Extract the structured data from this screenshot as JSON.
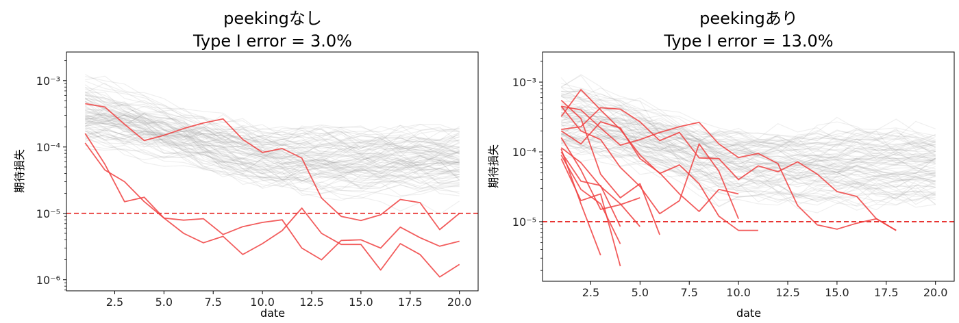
{
  "chart_data": [
    {
      "type": "line",
      "title": "peekingなし",
      "subtitle": "Type I error = 3.0%",
      "xlabel": "date",
      "ylabel": "期待損失",
      "xlim": [
        0.05,
        20.95
      ],
      "ylim": [
        6.8e-07,
        0.0027
      ],
      "log_y": true,
      "x_ticks": [
        "2.5",
        "5.0",
        "7.5",
        "10.0",
        "12.5",
        "15.0",
        "17.5",
        "20.0"
      ],
      "y_ticks": [
        "10⁻⁶",
        "10⁻⁵",
        "10⁻⁴",
        "10⁻³"
      ],
      "threshold": 1e-05,
      "threshold_color": "#e8302e",
      "background_series_color": "#9a9a9a",
      "highlight_color": "#f04040",
      "highlighted_series": [
        {
          "x": [
            1,
            2,
            3,
            4,
            5,
            6,
            7,
            8,
            9,
            10,
            11,
            12,
            13,
            14,
            15,
            16,
            17,
            18,
            19,
            20
          ],
          "y": [
            0.00045,
            0.0004,
            0.00022,
            0.000125,
            0.00015,
            0.00019,
            0.00023,
            0.000265,
            0.00013,
            8.3e-05,
            9.5e-05,
            6.8e-05,
            1.7e-05,
            9e-06,
            7.8e-06,
            9.5e-06,
            1.62e-05,
            1.45e-05,
            5.7e-06,
            1e-05
          ]
        },
        {
          "x": [
            1,
            2,
            3,
            4,
            5,
            6,
            7,
            8,
            9,
            10,
            11,
            12,
            13,
            14,
            15,
            16,
            17,
            18,
            19,
            20
          ],
          "y": [
            0.00016,
            5.5e-05,
            1.5e-05,
            1.75e-05,
            8.5e-06,
            7.9e-06,
            8.3e-06,
            4.8e-06,
            6.3e-06,
            7.3e-06,
            8e-06,
            3e-06,
            2e-06,
            3.9e-06,
            4e-06,
            3e-06,
            6.2e-06,
            4.3e-06,
            3.2e-06,
            3.8e-06
          ]
        },
        {
          "x": [
            1,
            2,
            3,
            4,
            5,
            6,
            7,
            8,
            9,
            10,
            11,
            12,
            13,
            14,
            15,
            16,
            17,
            18,
            19,
            20
          ],
          "y": [
            0.000115,
            4.5e-05,
            3e-05,
            1.5e-05,
            8.5e-06,
            5e-06,
            3.6e-06,
            4.5e-06,
            2.4e-06,
            3.5e-06,
            5.5e-06,
            1.2e-05,
            5e-06,
            3.4e-06,
            3.4e-06,
            1.4e-06,
            3.5e-06,
            2.4e-06,
            1.1e-06,
            1.7e-06
          ]
        }
      ]
    },
    {
      "type": "line",
      "title": "peekingあり",
      "subtitle": "Type I error = 13.0%",
      "xlabel": "date",
      "ylabel": "期待損失",
      "xlim": [
        0.05,
        20.95
      ],
      "ylim": [
        1.4e-06,
        0.0027
      ],
      "log_y": true,
      "x_ticks": [
        "2.5",
        "5.0",
        "7.5",
        "10.0",
        "12.5",
        "15.0",
        "17.5",
        "20.0"
      ],
      "y_ticks": [
        "10⁻⁵",
        "10⁻⁴",
        "10⁻³"
      ],
      "threshold": 1e-05,
      "threshold_color": "#e8302e",
      "background_series_color": "#9a9a9a",
      "highlight_color": "#f04040",
      "highlighted_series": [
        {
          "x": [
            1,
            2,
            3,
            4,
            5,
            6,
            7,
            8,
            9,
            10,
            11,
            12,
            13,
            14,
            15,
            16,
            17,
            18
          ],
          "y": [
            0.00045,
            0.0004,
            0.00022,
            0.000125,
            0.00015,
            0.00019,
            0.00023,
            0.000265,
            0.00013,
            8.3e-05,
            9.5e-05,
            6.8e-05,
            1.7e-05,
            9e-06,
            7.8e-06,
            9.5e-06,
            1.1e-05,
            7.5e-06
          ]
        },
        {
          "x": [
            1,
            2,
            3,
            4,
            5,
            6,
            7,
            8,
            9,
            10,
            11,
            12,
            13,
            14,
            15,
            16,
            17,
            18
          ],
          "y": [
            0.00021,
            0.00023,
            0.00043,
            0.00041,
            0.00027,
            0.000145,
            0.00019,
            8.2e-05,
            8e-05,
            4e-05,
            6.3e-05,
            5.2e-05,
            7.2e-05,
            4.8e-05,
            2.7e-05,
            2.3e-05,
            1.1e-05,
            7.5e-06
          ]
        },
        {
          "x": [
            1,
            2,
            3,
            4,
            5,
            6,
            7,
            8,
            9,
            10,
            11
          ],
          "y": [
            0.00032,
            0.00078,
            0.0004,
            0.00021,
            9e-05,
            4.9e-05,
            6.5e-05,
            3.5e-05,
            1.2e-05,
            7.5e-06,
            7.5e-06
          ]
        },
        {
          "x": [
            1,
            2,
            3,
            4,
            5,
            6,
            7,
            8,
            9,
            10
          ],
          "y": [
            0.0002,
            0.00013,
            0.00027,
            0.00022,
            8e-05,
            5e-05,
            2.5e-05,
            1.4e-05,
            2.9e-05,
            2.5e-05
          ]
        },
        {
          "x": [
            1,
            2,
            3,
            4,
            5,
            6,
            7,
            8,
            9,
            10
          ],
          "y": [
            0.00045,
            0.0002,
            0.00015,
            6e-05,
            3.2e-05,
            1.3e-05,
            2e-05,
            0.00013,
            5.3e-05,
            1.1e-05
          ]
        },
        {
          "x": [
            1,
            2,
            3,
            4,
            5,
            6
          ],
          "y": [
            0.00055,
            0.0003,
            4.8e-05,
            2.2e-05,
            3.5e-05,
            6.5e-06
          ]
        },
        {
          "x": [
            1,
            2,
            3,
            4,
            5
          ],
          "y": [
            0.000115,
            7e-05,
            3.2e-05,
            1.8e-05,
            8.5e-06
          ]
        },
        {
          "x": [
            1,
            2,
            3,
            4,
            5
          ],
          "y": [
            0.00016,
            5.5e-05,
            1.5e-05,
            1.75e-05,
            2.2e-05
          ]
        },
        {
          "x": [
            1,
            2,
            3,
            4
          ],
          "y": [
            0.0001,
            3.8e-05,
            3.3e-05,
            8.5e-06
          ]
        },
        {
          "x": [
            1,
            2,
            3,
            4
          ],
          "y": [
            9e-05,
            2.9e-05,
            1.8e-05,
            4.8e-06
          ]
        },
        {
          "x": [
            1,
            2,
            3,
            4
          ],
          "y": [
            8e-05,
            2e-05,
            2.5e-05,
            2.3e-06
          ]
        },
        {
          "x": [
            1,
            2,
            3
          ],
          "y": [
            0.00011,
            1.8e-05,
            3.3e-06
          ]
        }
      ]
    }
  ]
}
